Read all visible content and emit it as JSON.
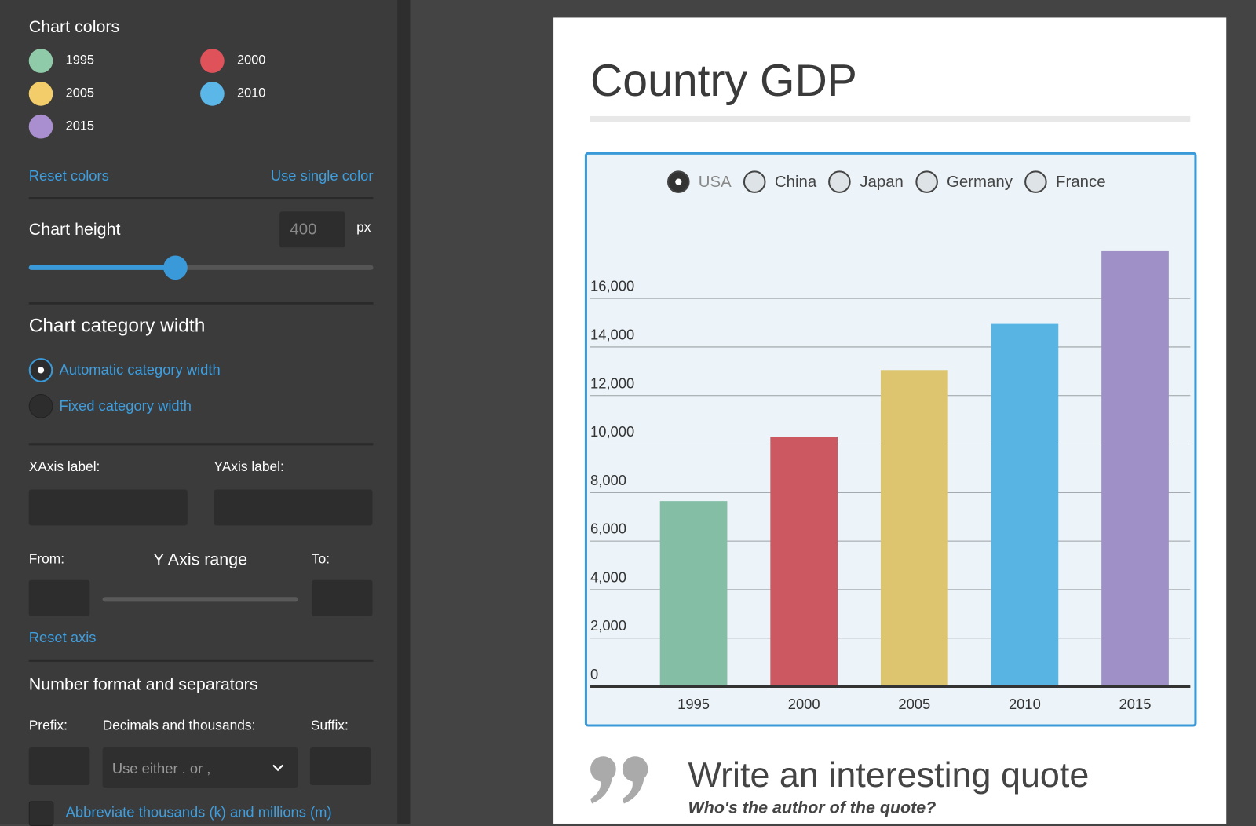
{
  "sidebar": {
    "colors_heading": "Chart colors",
    "swatches": [
      {
        "label": "1995",
        "color": "#8fcba8"
      },
      {
        "label": "2000",
        "color": "#e0525a"
      },
      {
        "label": "2005",
        "color": "#f2cd6a"
      },
      {
        "label": "2010",
        "color": "#5ab7e8"
      },
      {
        "label": "2015",
        "color": "#a98fcf"
      }
    ],
    "reset_colors": "Reset colors",
    "single_color": "Use single color",
    "height_heading": "Chart height",
    "height_value": 400,
    "height_unit": "px",
    "width_heading": "Chart category width",
    "width_options": [
      "Automatic category width",
      "Fixed category width"
    ],
    "xaxis_label": "XAxis label:",
    "yaxis_label": "YAxis label:",
    "from": "From:",
    "range_heading": "Y Axis range",
    "to": "To:",
    "reset_axis": "Reset axis",
    "format_heading": "Number format and separators",
    "prefix": "Prefix:",
    "decimals": "Decimals and thousands:",
    "suffix": "Suffix:",
    "separator_select": "Use either . or ,",
    "abbreviate": "Abbreviate thousands (k) and millions (m)"
  },
  "card": {
    "title": "Country GDP",
    "countries": [
      "USA",
      "China",
      "Japan",
      "Germany",
      "France"
    ],
    "selected": 0,
    "quote": "Write an interesting quote",
    "author": "Who's the author of the quote?"
  },
  "chart_data": {
    "type": "bar",
    "categories": [
      "1995",
      "2000",
      "2005",
      "2010",
      "2015"
    ],
    "values": [
      7650,
      10300,
      13050,
      14950,
      17950
    ],
    "colors": [
      "#84bfa5",
      "#cc5962",
      "#dcc56e",
      "#58b4e2",
      "#9f90c8"
    ],
    "ylim": [
      0,
      18000
    ],
    "yticks": [
      0,
      {
        "value": 2000,
        "label": "2,000"
      },
      {
        "value": 4000,
        "label": "4,000"
      },
      {
        "value": 6000,
        "label": "6,000"
      },
      {
        "value": 8000,
        "label": "8,000"
      },
      {
        "value": 10000,
        "label": "10,000"
      },
      {
        "value": 12000,
        "label": "12,000"
      },
      {
        "value": 14000,
        "label": "14,000"
      },
      {
        "value": 16000,
        "label": "16,000"
      }
    ],
    "grid": true
  }
}
